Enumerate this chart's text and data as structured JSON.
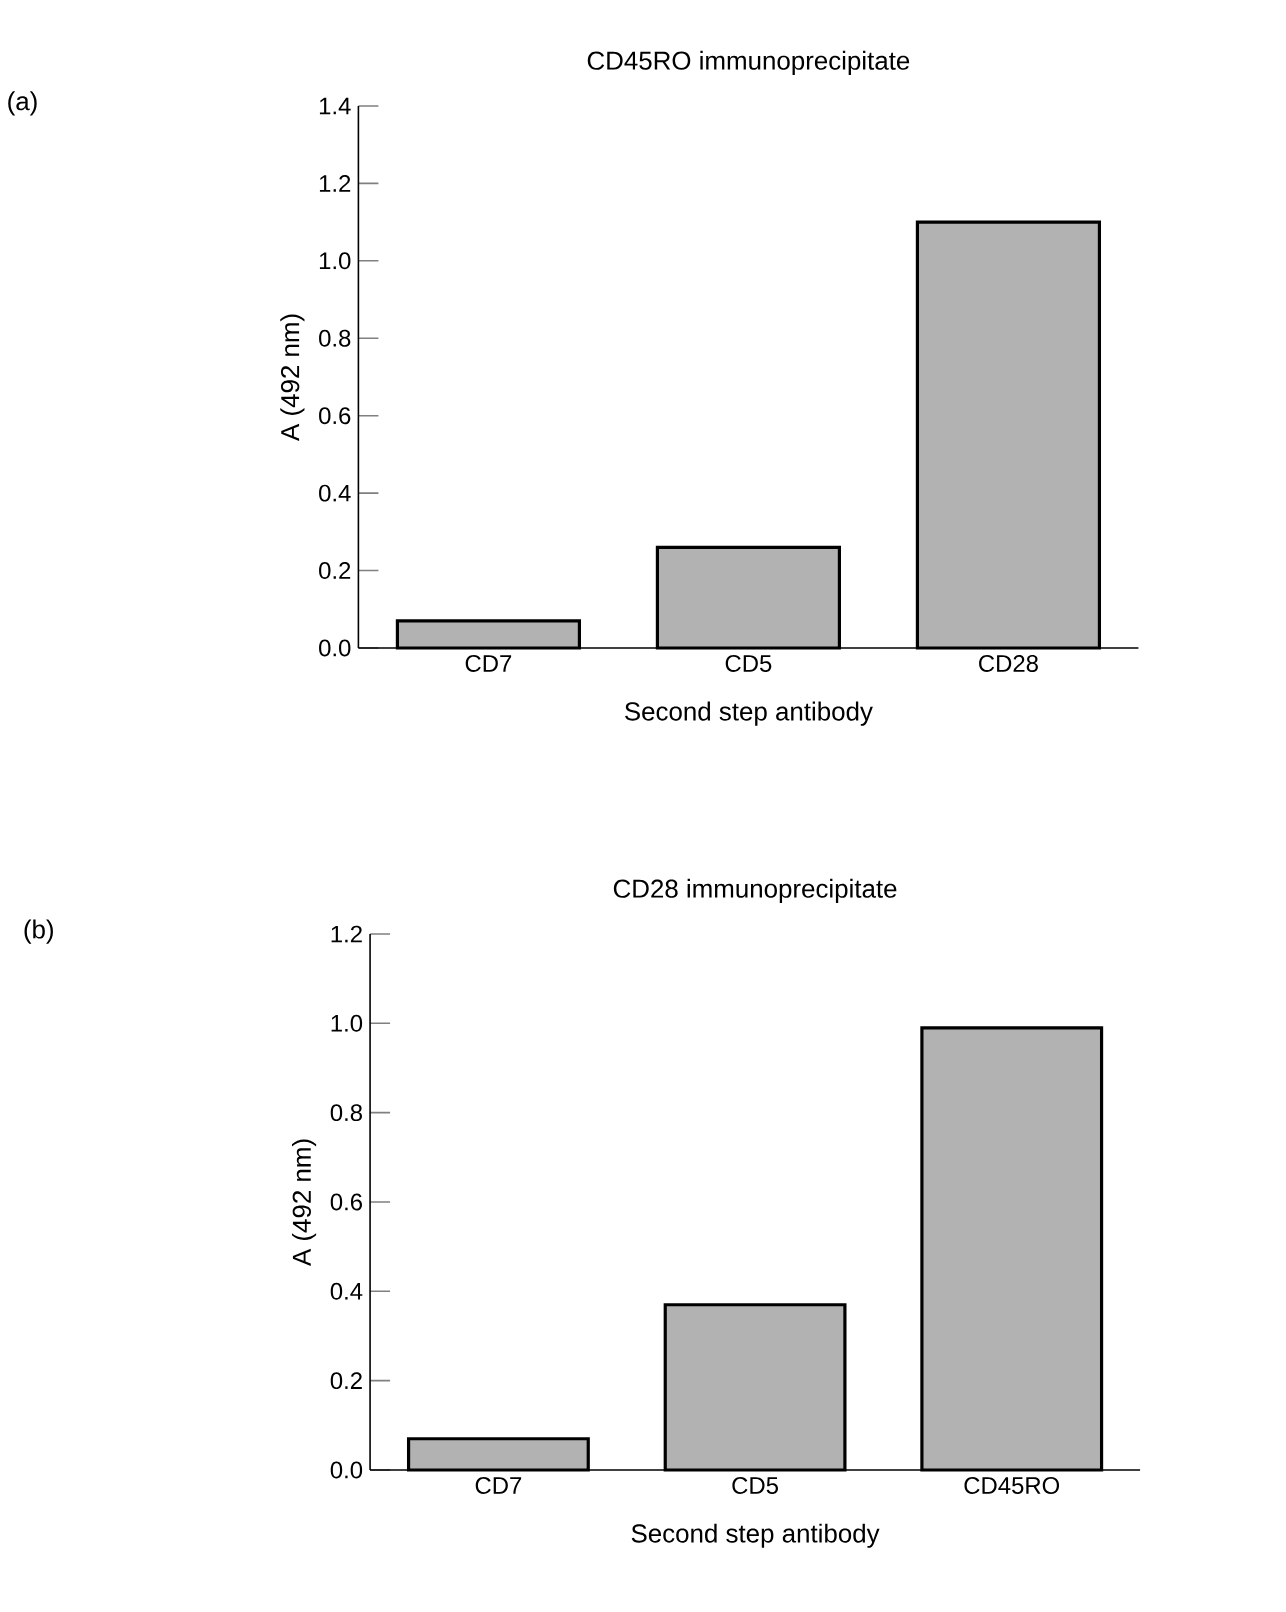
{
  "chart_data": [
    {
      "type": "bar",
      "title": "CD45RO immunoprecipitate",
      "xlabel": "Second step antibody",
      "ylabel": "A (492 nm)",
      "categories": [
        "CD7",
        "CD5",
        "CD28"
      ],
      "values": [
        0.07,
        0.26,
        1.1
      ],
      "color": "#000000",
      "ylim": [
        0,
        1.4
      ],
      "yticks": [
        {
          "value": 0,
          "label": "0.0"
        },
        {
          "value": 0.2,
          "label": "0.2"
        },
        {
          "value": 0.4,
          "label": "0.4"
        },
        {
          "value": 0.6,
          "label": "0.6"
        },
        {
          "value": 0.8,
          "label": "0.8"
        },
        {
          "value": 1.0,
          "label": "1.0"
        },
        {
          "value": 1.2,
          "label": "1.2"
        },
        {
          "value": 1.4,
          "label": "1.4"
        }
      ],
      "annotations": [
        "(a)"
      ]
    },
    {
      "type": "bar",
      "title": "CD28 immunoprecipitate",
      "xlabel": "Second step antibody",
      "ylabel": "A (492 nm)",
      "categories": [
        "CD7",
        "CD5",
        "CD45RO"
      ],
      "values": [
        0.07,
        0.37,
        0.99
      ],
      "color": "#000000",
      "ylim": [
        0,
        1.2
      ],
      "yticks": [
        {
          "value": 0,
          "label": "0.0"
        },
        {
          "value": 0.2,
          "label": "0.2"
        },
        {
          "value": 0.4,
          "label": "0.4"
        },
        {
          "value": 0.6,
          "label": "0.6"
        },
        {
          "value": 0.8,
          "label": "0.8"
        },
        {
          "value": 1.0,
          "label": "1.0"
        },
        {
          "value": 1.2,
          "label": "1.2"
        }
      ],
      "annotations": [
        "(b)"
      ]
    }
  ]
}
